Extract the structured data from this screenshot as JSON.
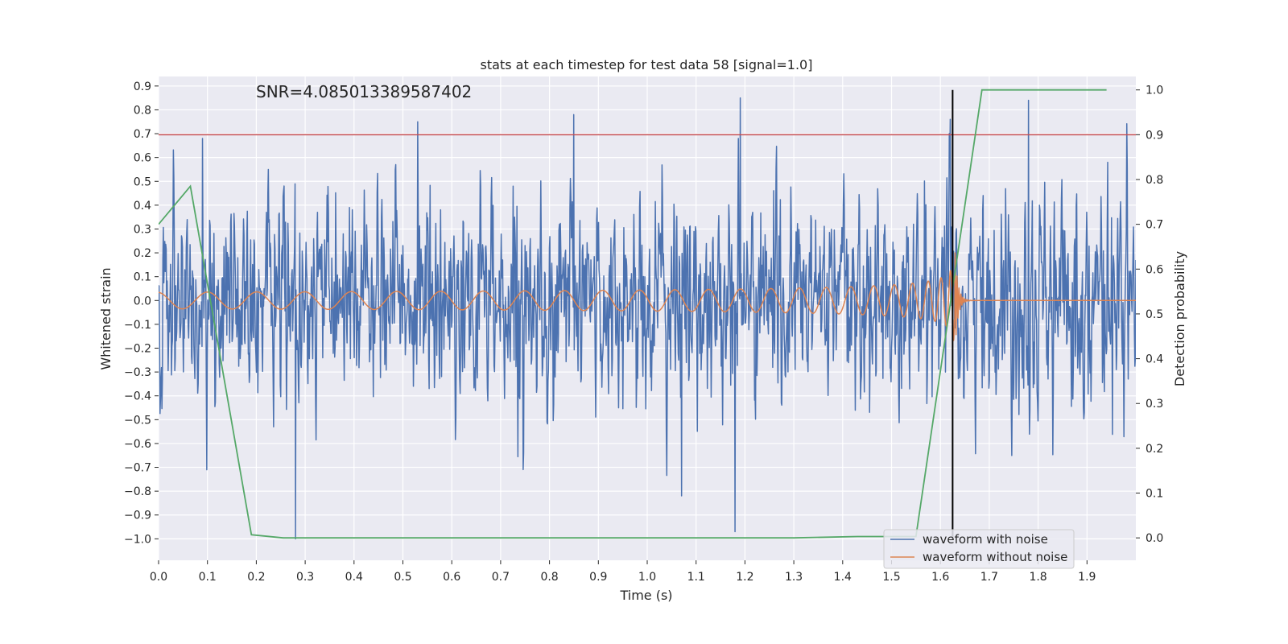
{
  "chart_data": {
    "type": "line",
    "title": "stats at each timestep for test data 58 [signal=1.0]",
    "annotation": "SNR=4.085013389587402",
    "xlabel": "Time (s)",
    "ylabel_left": "Whitened strain",
    "ylabel_right": "Detection probability",
    "xlim": [
      0.0,
      2.0
    ],
    "ylim_left": [
      -1.09,
      0.94
    ],
    "ylim_right": [
      -0.05,
      1.03
    ],
    "x_ticks": [
      "0.0",
      "0.1",
      "0.2",
      "0.3",
      "0.4",
      "0.5",
      "0.6",
      "0.7",
      "0.8",
      "0.9",
      "1.0",
      "1.1",
      "1.2",
      "1.3",
      "1.4",
      "1.5",
      "1.6",
      "1.7",
      "1.8",
      "1.9"
    ],
    "y_left_ticks": [
      "0.9",
      "0.8",
      "0.7",
      "0.6",
      "0.5",
      "0.4",
      "0.3",
      "0.2",
      "0.1",
      "0.0",
      "−0.1",
      "−0.2",
      "−0.3",
      "−0.4",
      "−0.5",
      "−0.6",
      "−0.7",
      "−0.8",
      "−0.9",
      "−1.0"
    ],
    "y_right_ticks": [
      "1.0",
      "0.9",
      "0.8",
      "0.7",
      "0.6",
      "0.5",
      "0.4",
      "0.3",
      "0.2",
      "0.1",
      "0.0"
    ],
    "grid": true,
    "legend_position": "lower-right",
    "series": [
      {
        "name": "waveform with noise",
        "axis": "left",
        "color": "#4c72b0",
        "description": "dense noisy strain oscillating roughly between -1.0 and 0.85",
        "x_range": [
          0.0,
          2.0
        ],
        "amplitude": 0.3,
        "peaks": [
          {
            "x": 0.09,
            "y": 0.68
          },
          {
            "x": 0.28,
            "y": -1.0
          },
          {
            "x": 0.53,
            "y": 0.75
          },
          {
            "x": 0.85,
            "y": 0.78
          },
          {
            "x": 1.07,
            "y": -0.82
          },
          {
            "x": 1.18,
            "y": -0.97
          },
          {
            "x": 1.19,
            "y": 0.85
          },
          {
            "x": 1.78,
            "y": 0.84
          },
          {
            "x": 1.62,
            "y": 0.76
          }
        ]
      },
      {
        "name": "waveform without noise",
        "axis": "left",
        "color": "#dd8452",
        "description": "chirp signal growing in amplitude and frequency, merging near t=1.63 s then ring-down to zero",
        "x_range": [
          0.0,
          2.0
        ],
        "merger_time": 1.63,
        "peak_amplitude": 0.2
      },
      {
        "name": "detection probability",
        "axis": "right",
        "color": "#55a868",
        "x": [
          0.0,
          0.065,
          0.19,
          0.255,
          0.3,
          0.5,
          1.0,
          1.3,
          1.43,
          1.55,
          1.685,
          1.7,
          1.94
        ],
        "y": [
          0.7,
          0.785,
          0.007,
          0.0,
          0.0,
          0.0,
          0.0,
          0.0,
          0.003,
          0.003,
          1.0,
          1.0,
          1.0
        ]
      }
    ],
    "threshold_line": {
      "axis": "right",
      "y": 0.9,
      "color": "#c44e52"
    },
    "vertical_line": {
      "x": 1.625,
      "y_range_right": [
        -0.003,
        1.0
      ],
      "color": "#000000"
    }
  }
}
